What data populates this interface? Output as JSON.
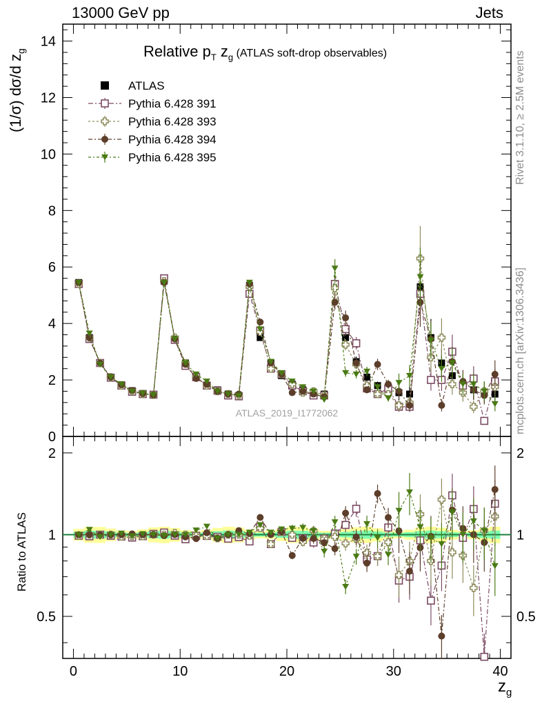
{
  "header": {
    "left": "13000 GeV pp",
    "right": "Jets"
  },
  "side": {
    "rivet": "Rivet 3.1.10, ≥ 2.5M events",
    "mcplots": "mcplots.cern.ch [arXiv:1306.3436]"
  },
  "watermark": "ATLAS_2019_I1772062",
  "plot_title": {
    "main": "Relative p",
    "sub_t": "T",
    "main2": " z",
    "sub_g": "g",
    "small": " (ATLAS soft-drop observables)"
  },
  "ylabel_top": {
    "main": "(1/σ) dσ/d z",
    "sub": "g"
  },
  "ylabel_bottom": "Ratio to ATLAS",
  "xlabel": {
    "main": "z",
    "sub": "g"
  },
  "colors": {
    "ATLAS": "#000000",
    "391": "#7a4a62",
    "393": "#8c8a5a",
    "394": "#5c3e2a",
    "395": "#4a7a14",
    "band_outer": "#ffff99",
    "band_inner": "#80ffb0",
    "ratio_line": "#1d7f3d"
  },
  "chart_data": {
    "type": "scatter",
    "xlim": [
      -1,
      41
    ],
    "ylim_top": [
      0,
      14.6
    ],
    "ylim_ratio": [
      0.35,
      2.3
    ],
    "log_ratio_axis": true,
    "x_ticks": [
      0,
      10,
      20,
      30,
      40
    ],
    "y_ticks_top": [
      0,
      2,
      4,
      6,
      8,
      10,
      12,
      14
    ],
    "y_ticks_ratio": [
      0.5,
      1,
      2
    ],
    "legend_position": "top-left",
    "x": [
      0.5,
      1.5,
      2.5,
      3.5,
      4.5,
      5.5,
      6.5,
      7.5,
      8.5,
      9.5,
      10.5,
      11.5,
      12.5,
      13.5,
      14.5,
      15.5,
      16.5,
      17.5,
      18.5,
      19.5,
      20.5,
      21.5,
      22.5,
      23.5,
      24.5,
      25.5,
      26.5,
      27.5,
      28.5,
      29.5,
      30.5,
      31.5,
      32.5,
      33.5,
      34.5,
      35.5,
      36.5,
      37.5,
      38.5,
      39.5
    ],
    "series": [
      {
        "name": "ATLAS",
        "marker": "square-filled",
        "values": [
          5.45,
          3.5,
          2.6,
          2.1,
          1.83,
          1.62,
          1.52,
          1.47,
          5.5,
          3.45,
          2.6,
          2.12,
          1.82,
          1.65,
          1.5,
          1.45,
          5.35,
          3.5,
          2.6,
          2.15,
          1.85,
          1.65,
          1.55,
          1.5,
          5.35,
          3.5,
          2.65,
          2.1,
          1.8,
          1.6,
          1.55,
          1.5,
          5.3,
          3.5,
          2.6,
          2.15,
          1.85,
          1.65,
          1.55,
          1.5
        ]
      },
      {
        "name": "Pythia 6.428 391",
        "marker": "square-open",
        "values": [
          5.4,
          3.45,
          2.6,
          2.08,
          1.8,
          1.58,
          1.5,
          1.48,
          5.6,
          3.42,
          2.5,
          2.1,
          1.8,
          1.62,
          1.45,
          1.42,
          5.05,
          3.75,
          2.4,
          2.2,
          1.8,
          1.6,
          1.45,
          1.45,
          5.4,
          3.8,
          3.3,
          1.7,
          1.5,
          1.7,
          1.05,
          1.05,
          5.05,
          2.0,
          2.0,
          3.0,
          1.8,
          2.05,
          0.55,
          1.95
        ]
      },
      {
        "name": "Pythia 6.428 393",
        "marker": "cross-open",
        "values": [
          5.4,
          3.5,
          2.6,
          2.1,
          1.8,
          1.6,
          1.5,
          1.47,
          5.5,
          3.5,
          2.6,
          2.1,
          1.8,
          1.6,
          1.5,
          1.45,
          5.3,
          3.7,
          2.4,
          2.2,
          1.85,
          1.55,
          1.6,
          1.45,
          5.25,
          3.25,
          2.55,
          1.8,
          1.5,
          1.5,
          1.1,
          1.2,
          6.3,
          2.8,
          3.5,
          1.85,
          1.55,
          1.05,
          1.6,
          1.75
        ]
      },
      {
        "name": "Pythia 6.428 394",
        "marker": "circle-filled",
        "values": [
          5.45,
          3.5,
          2.6,
          2.1,
          1.83,
          1.63,
          1.52,
          1.47,
          5.45,
          3.45,
          2.55,
          2.05,
          1.85,
          1.6,
          1.5,
          1.5,
          5.4,
          4.05,
          2.6,
          2.2,
          1.55,
          1.6,
          1.5,
          1.4,
          4.75,
          4.2,
          2.6,
          1.65,
          2.55,
          1.85,
          1.6,
          1.1,
          4.75,
          3.45,
          1.1,
          2.65,
          1.95,
          1.65,
          1.45,
          2.2
        ]
      },
      {
        "name": "Pythia 6.428 395",
        "marker": "triangle-down-filled",
        "values": [
          5.45,
          3.65,
          2.55,
          2.1,
          1.85,
          1.6,
          1.53,
          1.47,
          5.45,
          3.45,
          2.6,
          2.2,
          1.95,
          1.6,
          1.5,
          1.45,
          5.45,
          3.8,
          2.65,
          2.25,
          1.95,
          1.75,
          1.6,
          1.3,
          5.95,
          2.25,
          2.2,
          2.3,
          1.75,
          1.35,
          1.9,
          2.15,
          5.65,
          3.4,
          2.4,
          2.6,
          1.85,
          1.85,
          1.6,
          1.15
        ]
      }
    ]
  }
}
